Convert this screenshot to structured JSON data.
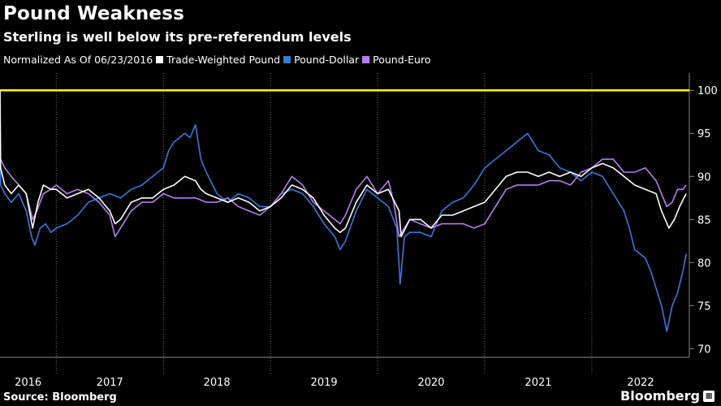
{
  "header": {
    "title": "Pound Weakness",
    "subtitle": "Sterling is well below its pre-referendum levels"
  },
  "legend": {
    "note": "Normalized As Of 06/23/2016",
    "items": [
      {
        "label": "Trade-Weighted Pound",
        "color": "#ffffff"
      },
      {
        "label": "Pound-Dollar",
        "color": "#2e7be3"
      },
      {
        "label": "Pound-Euro",
        "color": "#b77cf0"
      }
    ]
  },
  "footer": {
    "source": "Source: Bloomberg",
    "brand": "Bloomberg"
  },
  "chart_data": {
    "type": "line",
    "title": "Pound Weakness",
    "subtitle": "Sterling is well below its pre-referendum levels",
    "xlabel": "",
    "ylabel": "",
    "xlim": [
      2016.475,
      2022.91
    ],
    "ylim": [
      69,
      102
    ],
    "yticks": [
      70,
      75,
      80,
      85,
      90,
      95,
      100
    ],
    "xticks": [
      {
        "label": "2016",
        "start": 2016.475,
        "end": 2017.0
      },
      {
        "label": "2017",
        "start": 2017.0,
        "end": 2018.0
      },
      {
        "label": "2018",
        "start": 2018.0,
        "end": 2019.0
      },
      {
        "label": "2019",
        "start": 2019.0,
        "end": 2020.0
      },
      {
        "label": "2020",
        "start": 2020.0,
        "end": 2021.0
      },
      {
        "label": "2021",
        "start": 2021.0,
        "end": 2022.0
      },
      {
        "label": "2022",
        "start": 2022.0,
        "end": 2022.91
      }
    ],
    "reference_line": {
      "value": 100,
      "color": "#ffff00"
    },
    "grid": "dotted-vertical",
    "legend_position": "top-left",
    "series": [
      {
        "name": "Trade-Weighted Pound",
        "color": "#ffffff",
        "points": [
          [
            2016.475,
            100
          ],
          [
            2016.48,
            91
          ],
          [
            2016.52,
            89
          ],
          [
            2016.58,
            88
          ],
          [
            2016.65,
            89
          ],
          [
            2016.72,
            88
          ],
          [
            2016.78,
            84
          ],
          [
            2016.83,
            87
          ],
          [
            2016.88,
            89
          ],
          [
            2016.95,
            88.5
          ],
          [
            2017.0,
            88.5
          ],
          [
            2017.1,
            87.5
          ],
          [
            2017.2,
            88
          ],
          [
            2017.3,
            88.5
          ],
          [
            2017.4,
            87.5
          ],
          [
            2017.5,
            86
          ],
          [
            2017.55,
            84.5
          ],
          [
            2017.6,
            85
          ],
          [
            2017.7,
            87
          ],
          [
            2017.8,
            87.5
          ],
          [
            2017.9,
            87.5
          ],
          [
            2018.0,
            88.5
          ],
          [
            2018.1,
            89
          ],
          [
            2018.2,
            90
          ],
          [
            2018.3,
            89.5
          ],
          [
            2018.35,
            88.5
          ],
          [
            2018.4,
            88
          ],
          [
            2018.5,
            87.5
          ],
          [
            2018.6,
            87
          ],
          [
            2018.7,
            87.5
          ],
          [
            2018.8,
            87
          ],
          [
            2018.9,
            86
          ],
          [
            2019.0,
            86.5
          ],
          [
            2019.1,
            87.5
          ],
          [
            2019.2,
            89
          ],
          [
            2019.3,
            88.5
          ],
          [
            2019.4,
            87.5
          ],
          [
            2019.5,
            85.5
          ],
          [
            2019.6,
            84
          ],
          [
            2019.65,
            83.5
          ],
          [
            2019.7,
            84
          ],
          [
            2019.8,
            87
          ],
          [
            2019.9,
            89
          ],
          [
            2020.0,
            88
          ],
          [
            2020.1,
            88.5
          ],
          [
            2020.2,
            86
          ],
          [
            2020.22,
            83
          ],
          [
            2020.3,
            85
          ],
          [
            2020.4,
            85
          ],
          [
            2020.5,
            84
          ],
          [
            2020.6,
            85.5
          ],
          [
            2020.7,
            85.5
          ],
          [
            2020.8,
            86
          ],
          [
            2020.9,
            86.5
          ],
          [
            2021.0,
            87
          ],
          [
            2021.1,
            88.5
          ],
          [
            2021.2,
            90
          ],
          [
            2021.3,
            90.5
          ],
          [
            2021.4,
            90.5
          ],
          [
            2021.5,
            90
          ],
          [
            2021.6,
            90.5
          ],
          [
            2021.7,
            90
          ],
          [
            2021.8,
            90.5
          ],
          [
            2021.9,
            90
          ],
          [
            2022.0,
            91
          ],
          [
            2022.1,
            91.5
          ],
          [
            2022.2,
            91
          ],
          [
            2022.3,
            90
          ],
          [
            2022.4,
            89
          ],
          [
            2022.5,
            88.5
          ],
          [
            2022.6,
            88
          ],
          [
            2022.65,
            86
          ],
          [
            2022.72,
            84
          ],
          [
            2022.77,
            85
          ],
          [
            2022.82,
            86.5
          ],
          [
            2022.88,
            88
          ]
        ]
      },
      {
        "name": "Pound-Dollar",
        "color": "#2e7be3",
        "points": [
          [
            2016.475,
            100
          ],
          [
            2016.48,
            89
          ],
          [
            2016.52,
            88
          ],
          [
            2016.58,
            87
          ],
          [
            2016.65,
            88
          ],
          [
            2016.72,
            86
          ],
          [
            2016.77,
            83
          ],
          [
            2016.8,
            82
          ],
          [
            2016.85,
            84
          ],
          [
            2016.9,
            84.5
          ],
          [
            2016.95,
            83.5
          ],
          [
            2017.0,
            84
          ],
          [
            2017.1,
            84.5
          ],
          [
            2017.2,
            85.5
          ],
          [
            2017.3,
            87
          ],
          [
            2017.4,
            87.5
          ],
          [
            2017.5,
            88
          ],
          [
            2017.6,
            87.5
          ],
          [
            2017.7,
            88.5
          ],
          [
            2017.8,
            89
          ],
          [
            2017.9,
            90
          ],
          [
            2018.0,
            91
          ],
          [
            2018.05,
            93
          ],
          [
            2018.1,
            94
          ],
          [
            2018.2,
            95
          ],
          [
            2018.25,
            94.5
          ],
          [
            2018.3,
            96
          ],
          [
            2018.35,
            92
          ],
          [
            2018.4,
            90.5
          ],
          [
            2018.5,
            88
          ],
          [
            2018.6,
            87
          ],
          [
            2018.7,
            88
          ],
          [
            2018.8,
            87.5
          ],
          [
            2018.9,
            86.5
          ],
          [
            2019.0,
            86.5
          ],
          [
            2019.1,
            88
          ],
          [
            2019.2,
            88.5
          ],
          [
            2019.3,
            88
          ],
          [
            2019.4,
            86.5
          ],
          [
            2019.5,
            84.5
          ],
          [
            2019.6,
            83
          ],
          [
            2019.65,
            81.5
          ],
          [
            2019.7,
            82.5
          ],
          [
            2019.8,
            86
          ],
          [
            2019.9,
            88.5
          ],
          [
            2020.0,
            87.5
          ],
          [
            2020.1,
            86.5
          ],
          [
            2020.18,
            84
          ],
          [
            2020.21,
            77.5
          ],
          [
            2020.25,
            83
          ],
          [
            2020.3,
            83.5
          ],
          [
            2020.4,
            83.5
          ],
          [
            2020.5,
            83
          ],
          [
            2020.6,
            86
          ],
          [
            2020.7,
            87
          ],
          [
            2020.8,
            87.5
          ],
          [
            2020.9,
            89
          ],
          [
            2021.0,
            91
          ],
          [
            2021.1,
            92
          ],
          [
            2021.2,
            93
          ],
          [
            2021.3,
            94
          ],
          [
            2021.4,
            95
          ],
          [
            2021.5,
            93
          ],
          [
            2021.6,
            92.5
          ],
          [
            2021.7,
            91
          ],
          [
            2021.8,
            90.5
          ],
          [
            2021.9,
            89.5
          ],
          [
            2022.0,
            90.5
          ],
          [
            2022.1,
            90
          ],
          [
            2022.2,
            88
          ],
          [
            2022.3,
            86
          ],
          [
            2022.35,
            84
          ],
          [
            2022.4,
            81.5
          ],
          [
            2022.5,
            80.5
          ],
          [
            2022.55,
            79
          ],
          [
            2022.6,
            77
          ],
          [
            2022.65,
            75
          ],
          [
            2022.7,
            72
          ],
          [
            2022.75,
            75
          ],
          [
            2022.8,
            76.5
          ],
          [
            2022.85,
            79
          ],
          [
            2022.88,
            81
          ]
        ]
      },
      {
        "name": "Pound-Euro",
        "color": "#b77cf0",
        "points": [
          [
            2016.475,
            100
          ],
          [
            2016.48,
            92
          ],
          [
            2016.52,
            91
          ],
          [
            2016.58,
            90
          ],
          [
            2016.65,
            89
          ],
          [
            2016.72,
            88
          ],
          [
            2016.78,
            85
          ],
          [
            2016.82,
            86
          ],
          [
            2016.88,
            88
          ],
          [
            2016.95,
            88.5
          ],
          [
            2017.0,
            89
          ],
          [
            2017.1,
            88
          ],
          [
            2017.2,
            88.5
          ],
          [
            2017.3,
            88
          ],
          [
            2017.4,
            87
          ],
          [
            2017.5,
            85.5
          ],
          [
            2017.55,
            83
          ],
          [
            2017.6,
            84
          ],
          [
            2017.7,
            86
          ],
          [
            2017.8,
            87
          ],
          [
            2017.9,
            87
          ],
          [
            2018.0,
            88
          ],
          [
            2018.1,
            87.5
          ],
          [
            2018.2,
            87.5
          ],
          [
            2018.3,
            87.5
          ],
          [
            2018.4,
            87
          ],
          [
            2018.5,
            87
          ],
          [
            2018.6,
            87.5
          ],
          [
            2018.7,
            86.5
          ],
          [
            2018.8,
            86
          ],
          [
            2018.9,
            85.5
          ],
          [
            2019.0,
            86.5
          ],
          [
            2019.1,
            88
          ],
          [
            2019.2,
            90
          ],
          [
            2019.3,
            89
          ],
          [
            2019.4,
            87
          ],
          [
            2019.5,
            86
          ],
          [
            2019.6,
            85
          ],
          [
            2019.65,
            84.5
          ],
          [
            2019.7,
            85.5
          ],
          [
            2019.8,
            88.5
          ],
          [
            2019.9,
            90
          ],
          [
            2020.0,
            88
          ],
          [
            2020.1,
            89.5
          ],
          [
            2020.15,
            87
          ],
          [
            2020.2,
            83
          ],
          [
            2020.25,
            84
          ],
          [
            2020.3,
            85
          ],
          [
            2020.4,
            84.5
          ],
          [
            2020.5,
            84
          ],
          [
            2020.6,
            84.5
          ],
          [
            2020.7,
            84.5
          ],
          [
            2020.8,
            84.5
          ],
          [
            2020.9,
            84
          ],
          [
            2021.0,
            84.5
          ],
          [
            2021.1,
            86.5
          ],
          [
            2021.2,
            88.5
          ],
          [
            2021.3,
            89
          ],
          [
            2021.4,
            89
          ],
          [
            2021.5,
            89
          ],
          [
            2021.6,
            89.5
          ],
          [
            2021.7,
            89.5
          ],
          [
            2021.8,
            89
          ],
          [
            2021.9,
            90.5
          ],
          [
            2022.0,
            91
          ],
          [
            2022.1,
            92
          ],
          [
            2022.2,
            92
          ],
          [
            2022.3,
            90.5
          ],
          [
            2022.4,
            90.5
          ],
          [
            2022.5,
            91
          ],
          [
            2022.6,
            89.5
          ],
          [
            2022.65,
            88
          ],
          [
            2022.7,
            86.5
          ],
          [
            2022.75,
            87
          ],
          [
            2022.8,
            88.5
          ],
          [
            2022.85,
            88.5
          ],
          [
            2022.88,
            89
          ]
        ]
      }
    ]
  }
}
